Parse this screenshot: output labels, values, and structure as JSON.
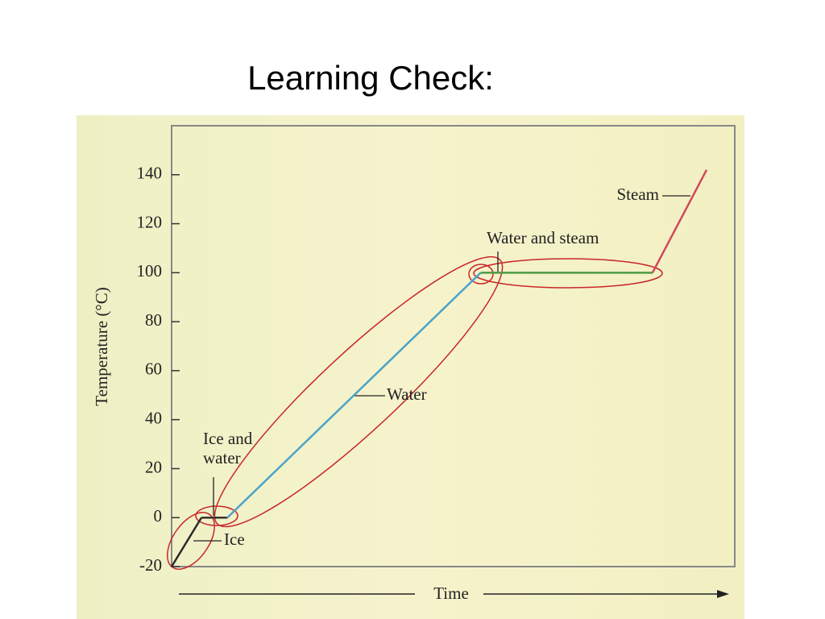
{
  "title": "Learning Check:",
  "chart_data": {
    "type": "line",
    "ylabel": "Temperature (°C)",
    "xlabel": "Time",
    "xlim": [
      0,
      100
    ],
    "ylim": [
      -20,
      160
    ],
    "yticks": [
      -20,
      0,
      20,
      40,
      60,
      80,
      100,
      120,
      140
    ],
    "series": [
      {
        "name": "Ice",
        "color": "#2a2a2a",
        "x": [
          0,
          5.3
        ],
        "values": [
          -20,
          0
        ]
      },
      {
        "name": "Ice and water",
        "color": "#3a3030",
        "x": [
          5.3,
          9.9
        ],
        "values": [
          0,
          0
        ]
      },
      {
        "name": "Water",
        "color": "#4aa3c8",
        "x": [
          9.9,
          54.9
        ],
        "values": [
          0,
          100
        ]
      },
      {
        "name": "Water and steam",
        "color": "#4f9a45",
        "x": [
          54.9,
          85.4
        ],
        "values": [
          100,
          100
        ]
      },
      {
        "name": "Steam",
        "color": "#d0485a",
        "x": [
          85.4,
          95
        ],
        "values": [
          100,
          142
        ]
      }
    ]
  }
}
